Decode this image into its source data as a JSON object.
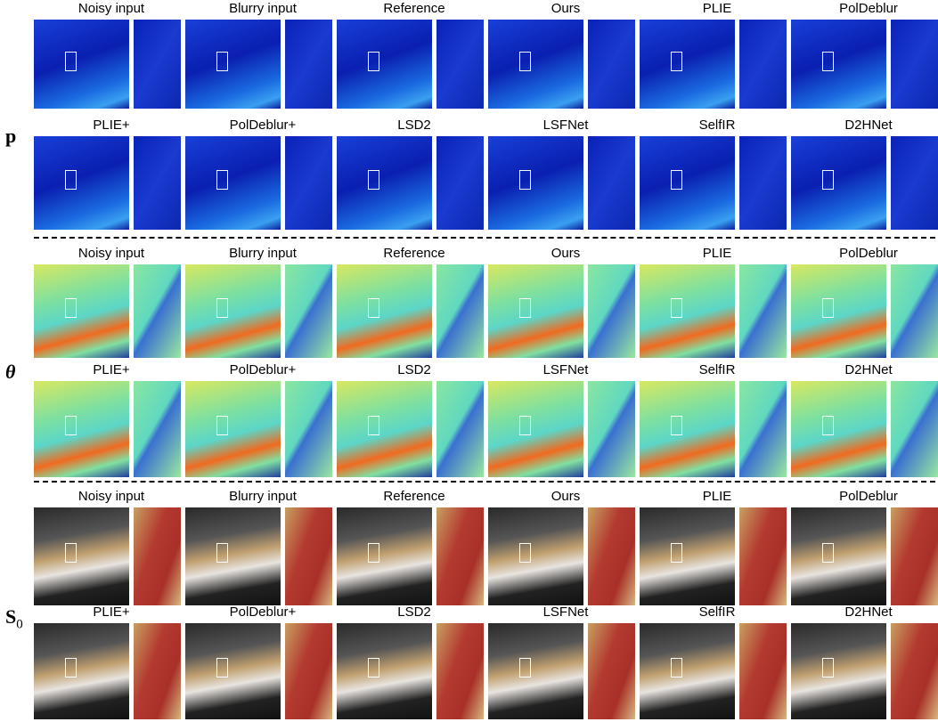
{
  "sections": [
    {
      "label": {
        "symbol": "p"
      },
      "rows": [
        [
          "Noisy input",
          "Blurry input",
          "Reference",
          "Ours",
          "PLIE",
          "PolDeblur"
        ],
        [
          "PLIE+",
          "PolDeblur+",
          "LSD2",
          "LSFNet",
          "SelfIR",
          "D2HNet"
        ]
      ]
    },
    {
      "label": {
        "symbol": "θ"
      },
      "rows": [
        [
          "Noisy input",
          "Blurry input",
          "Reference",
          "Ours",
          "PLIE",
          "PolDeblur"
        ],
        [
          "PLIE+",
          "PolDeblur+",
          "LSD2",
          "LSFNet",
          "SelfIR",
          "D2HNet"
        ]
      ]
    },
    {
      "label": {
        "symbol": "S",
        "subscript": "0"
      },
      "rows": [
        [
          "Noisy input",
          "Blurry input",
          "Reference",
          "Ours",
          "PLIE",
          "PolDeblur"
        ],
        [
          "PLIE+",
          "PolDeblur+",
          "LSD2",
          "LSFNet",
          "SelfIR",
          "D2HNet"
        ]
      ]
    }
  ]
}
